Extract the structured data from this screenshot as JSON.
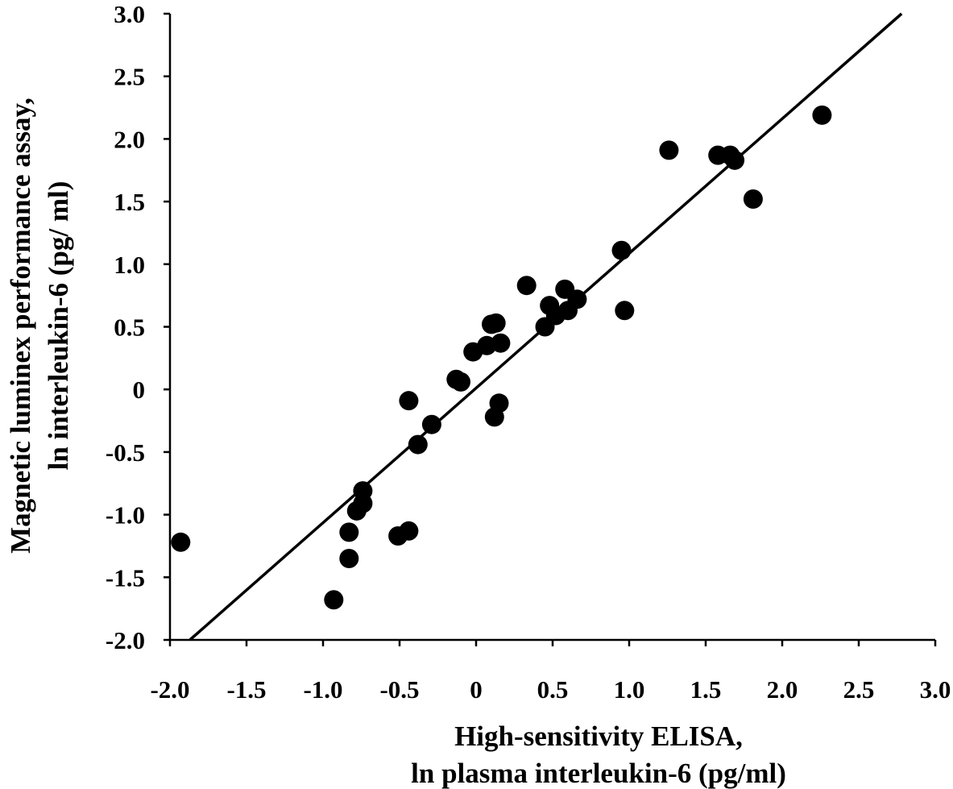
{
  "chart_data": {
    "type": "scatter",
    "title": "",
    "xlabel": [
      "High-sensitivity ELISA,",
      "ln plasma interleukin-6 (pg/ml)"
    ],
    "ylabel": [
      "Magnetic luminex performance assay,",
      "ln interleukin-6 (pg/ ml)"
    ],
    "xlim": [
      -2.0,
      3.0
    ],
    "ylim": [
      -2.0,
      3.0
    ],
    "xticks": [
      "-2.0",
      "-1.5",
      "-1.0",
      "-0.5",
      "0",
      "0.5",
      "1.0",
      "1.5",
      "2.0",
      "2.5",
      "3.0"
    ],
    "yticks": [
      "-2.0",
      "-1.5",
      "-1.0",
      "-0.5",
      "0",
      "0.5",
      "1.0",
      "1.5",
      "2.0",
      "2.5",
      "3.0"
    ],
    "grid": false,
    "legend": "none",
    "marker_color": "#000000",
    "points": [
      {
        "x": -1.93,
        "y": -1.22
      },
      {
        "x": -0.93,
        "y": -1.68
      },
      {
        "x": -0.83,
        "y": -1.35
      },
      {
        "x": -0.83,
        "y": -1.14
      },
      {
        "x": -0.78,
        "y": -0.97
      },
      {
        "x": -0.74,
        "y": -0.91
      },
      {
        "x": -0.74,
        "y": -0.81
      },
      {
        "x": -0.51,
        "y": -1.17
      },
      {
        "x": -0.44,
        "y": -1.13
      },
      {
        "x": -0.44,
        "y": -0.09
      },
      {
        "x": -0.38,
        "y": -0.44
      },
      {
        "x": -0.29,
        "y": -0.28
      },
      {
        "x": -0.13,
        "y": 0.08
      },
      {
        "x": -0.1,
        "y": 0.06
      },
      {
        "x": -0.02,
        "y": 0.3
      },
      {
        "x": 0.07,
        "y": 0.35
      },
      {
        "x": 0.1,
        "y": 0.52
      },
      {
        "x": 0.13,
        "y": 0.53
      },
      {
        "x": 0.16,
        "y": 0.37
      },
      {
        "x": 0.12,
        "y": -0.22
      },
      {
        "x": 0.15,
        "y": -0.11
      },
      {
        "x": 0.33,
        "y": 0.83
      },
      {
        "x": 0.45,
        "y": 0.5
      },
      {
        "x": 0.48,
        "y": 0.67
      },
      {
        "x": 0.52,
        "y": 0.59
      },
      {
        "x": 0.58,
        "y": 0.8
      },
      {
        "x": 0.6,
        "y": 0.63
      },
      {
        "x": 0.66,
        "y": 0.72
      },
      {
        "x": 0.95,
        "y": 1.11
      },
      {
        "x": 0.97,
        "y": 0.63
      },
      {
        "x": 1.26,
        "y": 1.91
      },
      {
        "x": 1.58,
        "y": 1.87
      },
      {
        "x": 1.66,
        "y": 1.87
      },
      {
        "x": 1.69,
        "y": 1.83
      },
      {
        "x": 1.81,
        "y": 1.52
      },
      {
        "x": 2.26,
        "y": 2.19
      }
    ],
    "regression_line": {
      "x1": -1.87,
      "y1": -2.0,
      "x2": 2.78,
      "y2": 3.0
    }
  }
}
